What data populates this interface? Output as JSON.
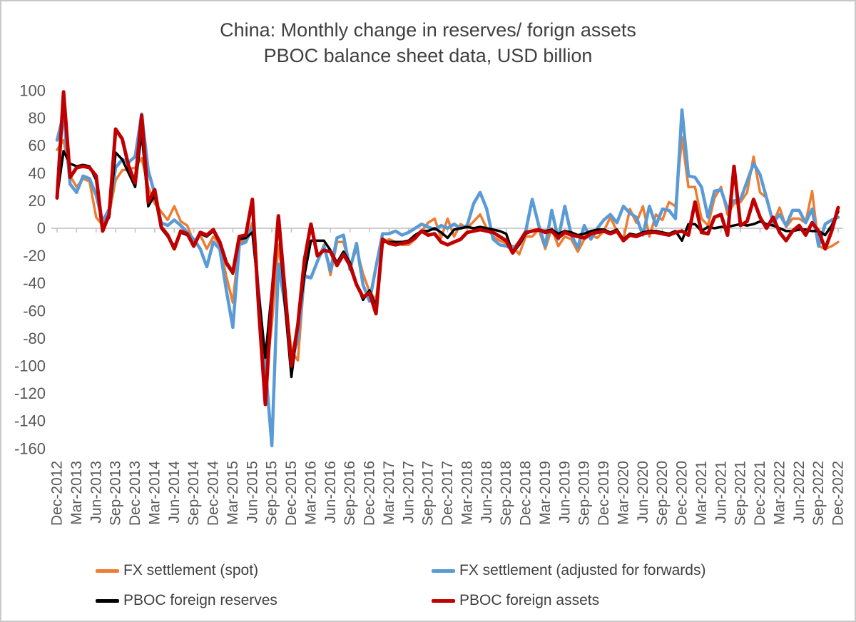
{
  "title": {
    "line1": "China: Monthly  change in reserves/ forign assets",
    "line2": "PBOC balance sheet data, USD billion"
  },
  "colors": {
    "orange": "#ED7D31",
    "blue": "#5B9BD5",
    "black": "#000000",
    "red": "#C00000",
    "axis_text": "#595959",
    "title_text": "#404040",
    "axis_line": "#BFBFBF",
    "background": "#FFFFFF"
  },
  "chart_data": {
    "type": "line",
    "title": "China: Monthly  change in reserves/ forign assets — PBOC balance sheet data, USD billion",
    "x_unit": "month",
    "frequency": "monthly",
    "x_range": [
      "Dec-2012",
      "Dec-2022"
    ],
    "x_tick_labels": [
      "Dec-2012",
      "Mar-2013",
      "Jun-2013",
      "Sep-2013",
      "Dec-2013",
      "Mar-2014",
      "Jun-2014",
      "Sep-2014",
      "Dec-2014",
      "Mar-2015",
      "Jun-2015",
      "Sep-2015",
      "Dec-2015",
      "Mar-2016",
      "Jun-2016",
      "Sep-2016",
      "Dec-2016",
      "Mar-2017",
      "Jun-2017",
      "Sep-2017",
      "Dec-2017",
      "Mar-2018",
      "Jun-2018",
      "Sep-2018",
      "Dec-2018",
      "Mar-2019",
      "Jun-2019",
      "Sep-2019",
      "Dec-2019",
      "Mar-2020",
      "Jun-2020",
      "Sep-2020",
      "Dec-2020",
      "Mar-2021",
      "Jun-2021",
      "Sep-2021",
      "Dec-2021",
      "Mar-2022",
      "Jun-2022",
      "Sep-2022",
      "Dec-2022"
    ],
    "y_ticks": [
      100,
      80,
      60,
      40,
      20,
      0,
      -20,
      -40,
      -60,
      -80,
      -100,
      -120,
      -140,
      -160
    ],
    "ylim": [
      -160,
      100
    ],
    "grid": "zero axis line only, quarterly tick marks",
    "legend_position": "bottom, two columns",
    "series": [
      {
        "name": "FX settlement (spot)",
        "color": "#ED7D31",
        "values": [
          57,
          64,
          38,
          30,
          36,
          34,
          8,
          2,
          10,
          35,
          42,
          43,
          44,
          51,
          30,
          18,
          12,
          6,
          16,
          5,
          2,
          -10,
          -5,
          -15,
          -6,
          -12,
          -35,
          -54,
          -10,
          -8,
          4,
          -52,
          -112,
          -70,
          -12,
          -48,
          -89,
          -96,
          -34,
          -36,
          -24,
          -12,
          -34,
          -10,
          -10,
          -28,
          -15,
          -33,
          -46,
          -52,
          -11,
          -8,
          -10,
          -12,
          -12,
          -8,
          -2,
          4,
          7,
          -7,
          7,
          -6,
          3,
          0,
          5,
          10,
          0,
          -6,
          -9,
          -11,
          -13,
          -19,
          -6,
          -6,
          -1,
          -15,
          0,
          -13,
          -6,
          -8,
          -17,
          -8,
          -5,
          -7,
          -2,
          8,
          -2,
          -8,
          14,
          4,
          16,
          -6,
          10,
          6,
          19,
          16,
          66,
          30,
          30,
          7,
          2,
          22,
          30,
          10,
          18,
          19,
          26,
          52,
          26,
          22,
          4,
          15,
          1,
          7,
          7,
          4,
          27,
          -13,
          -15,
          -13,
          -10
        ]
      },
      {
        "name": "FX settlement (adjusted for forwards)",
        "color": "#5B9BD5",
        "values": [
          64,
          83,
          32,
          26,
          38,
          36,
          24,
          5,
          14,
          44,
          50,
          48,
          52,
          83,
          42,
          25,
          4,
          2,
          6,
          2,
          -3,
          -8,
          -15,
          -28,
          -10,
          -15,
          -45,
          -72,
          -12,
          -10,
          1,
          -48,
          -100,
          -158,
          -26,
          -55,
          -97,
          -80,
          -35,
          -36,
          -24,
          -13,
          -31,
          -7,
          -5,
          -30,
          -11,
          -41,
          -53,
          -28,
          -4,
          -4,
          -2,
          -5,
          -3,
          0,
          3,
          1,
          -1,
          2,
          0,
          3,
          0,
          2,
          18,
          26,
          14,
          -8,
          -12,
          -13,
          -15,
          -10,
          -2,
          21,
          2,
          -13,
          13,
          -8,
          16,
          -5,
          -14,
          2,
          -8,
          0,
          6,
          10,
          4,
          16,
          11,
          8,
          -5,
          16,
          2,
          14,
          13,
          7,
          86,
          38,
          37,
          30,
          8,
          27,
          28,
          14,
          20,
          21,
          34,
          47,
          39,
          22,
          4,
          10,
          2,
          13,
          13,
          4,
          14,
          -13,
          3,
          6,
          8
        ]
      },
      {
        "name": "PBOC foreign reserves",
        "color": "#000000",
        "values": [
          23,
          56,
          47,
          45,
          46,
          45,
          35,
          0,
          8,
          55,
          50,
          40,
          30,
          70,
          16,
          24,
          0,
          -6,
          -13,
          -3,
          -5,
          -12,
          -4,
          -6,
          -2,
          -11,
          -26,
          -33,
          -8,
          -7,
          -3,
          -49,
          -94,
          -45,
          5,
          -55,
          -108,
          -70,
          -34,
          -9,
          -9,
          -9,
          -16,
          -25,
          -17,
          -25,
          -40,
          -52,
          -45,
          -57,
          -10,
          -10,
          -10,
          -10,
          -9,
          -5,
          -2,
          -2,
          0,
          -3,
          -7,
          -1,
          0,
          1,
          0,
          1,
          0,
          -1,
          -2,
          -4,
          -18,
          -12,
          -4,
          -2,
          -1,
          -2,
          -1,
          -4,
          -2,
          -3,
          -5,
          -4,
          -2,
          -1,
          -1,
          -3,
          -1,
          -8,
          -4,
          -5,
          -3,
          -2,
          -2,
          -3,
          -4,
          -2,
          -9,
          3,
          3,
          -2,
          1,
          0,
          1,
          1,
          2,
          3,
          2,
          3,
          5,
          3,
          2,
          0,
          -2,
          -2,
          -1,
          -1,
          -2,
          -2,
          -5,
          2,
          12
        ]
      },
      {
        "name": "PBOC foreign assets",
        "color": "#C00000",
        "values": [
          22,
          99,
          37,
          44,
          45,
          44,
          38,
          -2,
          10,
          72,
          65,
          45,
          33,
          82,
          19,
          28,
          1,
          -5,
          -15,
          -2,
          -4,
          -13,
          -3,
          -5,
          -1,
          -10,
          -25,
          -32,
          -6,
          -5,
          21,
          -60,
          -128,
          -50,
          9,
          -45,
          -100,
          -70,
          -23,
          3,
          -20,
          -16,
          -17,
          -27,
          -19,
          -27,
          -41,
          -50,
          -47,
          -62,
          -8,
          -11,
          -12,
          -11,
          -10,
          -7,
          -2,
          -5,
          -4,
          -10,
          -12,
          -10,
          -8,
          -3,
          -2,
          -1,
          -2,
          -3,
          -6,
          -9,
          -18,
          -10,
          -3,
          -2,
          -1,
          -3,
          -2,
          -7,
          -3,
          -5,
          -6,
          -7,
          -4,
          -3,
          -2,
          -4,
          -2,
          -9,
          -5,
          -6,
          -4,
          -3,
          -3,
          -4,
          -5,
          -3,
          -2,
          -5,
          19,
          -3,
          -4,
          8,
          10,
          -5,
          45,
          2,
          5,
          21,
          8,
          0,
          8,
          -3,
          -9,
          -2,
          2,
          -5,
          4,
          -2,
          -15,
          -2,
          15
        ]
      }
    ]
  }
}
